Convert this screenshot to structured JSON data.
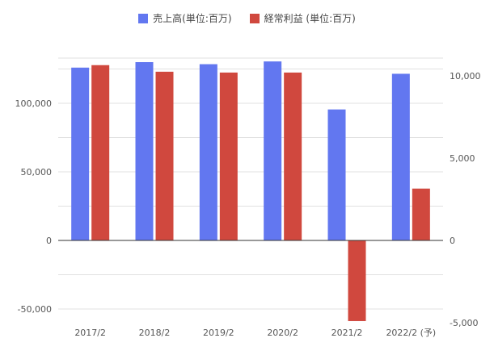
{
  "chart_data": {
    "type": "bar",
    "categories": [
      "2017/2",
      "2018/2",
      "2019/2",
      "2020/2",
      "2021/2",
      "2022/2 (予)"
    ],
    "series": [
      {
        "name": "売上高(単位:百万)",
        "axis": "left",
        "color": "#6277f0",
        "values": [
          126000,
          130000,
          128500,
          130500,
          95500,
          121500
        ]
      },
      {
        "name": "経常利益 (単位:百万)",
        "axis": "right",
        "color": "#d0483e",
        "values": [
          10650,
          10250,
          10200,
          10200,
          -4900,
          3150
        ]
      }
    ],
    "left_axis": {
      "min": -50000,
      "max": 150000,
      "ticks": [
        -50000,
        0,
        50000,
        100000
      ],
      "tick_labels": [
        "-50,000",
        "0",
        "50,000",
        "100,000"
      ]
    },
    "right_axis": {
      "min": -5000,
      "max": 10000,
      "ticks": [
        -5000,
        0,
        5000,
        10000
      ],
      "tick_labels": [
        "-5,000",
        "0",
        "5,000",
        "10,000"
      ]
    },
    "grid": true,
    "legend_position": "top-center"
  }
}
